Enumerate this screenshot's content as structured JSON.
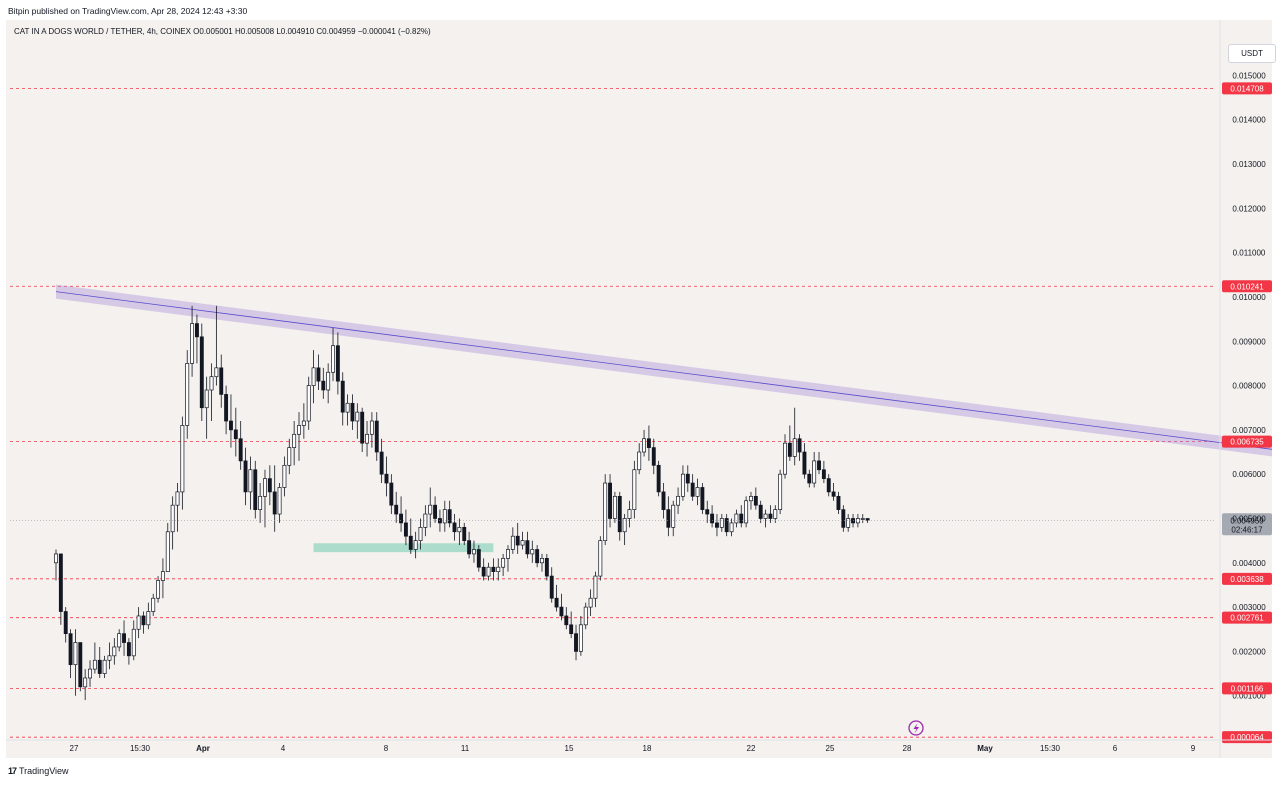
{
  "header": {
    "published_text": "Bitpin published on TradingView.com, Apr 28, 2024 12:43 +3:30"
  },
  "legend": {
    "text": "CAT IN A DOGS WORLD / TETHER, 4h, COINEX  O0.005001  H0.005008  L0.004910  C0.004959  −0.000041 (−0.82%)"
  },
  "currency_button": {
    "label": "USDT"
  },
  "footer": {
    "brand": "TradingView",
    "logo_glyph": "17"
  },
  "chart_data": {
    "type": "candlestick",
    "symbol": "CAT IN A DOGS WORLD / TETHER",
    "interval": "4h",
    "exchange": "COINEX",
    "ohlc": {
      "open": "0.005001",
      "high": "0.005008",
      "low": "0.004910",
      "close": "0.004959",
      "change": "−0.000041",
      "change_pct": "−0.82%"
    },
    "ylim": [
      0,
      0.0158
    ],
    "y_ticks": [
      "0.015000",
      "0.014000",
      "0.013000",
      "0.012000",
      "0.011000",
      "0.010000",
      "0.009000",
      "0.008000",
      "0.007000",
      "0.006000",
      "0.005000",
      "0.004000",
      "0.003000",
      "0.002000",
      "0.001000"
    ],
    "x_ticks": [
      "27",
      "15:30",
      "Apr",
      "4",
      "8",
      "11",
      "15",
      "18",
      "22",
      "25",
      "28",
      "May",
      "15:30",
      "6",
      "9"
    ],
    "price_levels": [
      {
        "value": 0.014708,
        "label": "0.014708",
        "color": "#f23645"
      },
      {
        "value": 0.010241,
        "label": "0.010241",
        "color": "#f23645"
      },
      {
        "value": 0.006735,
        "label": "0.006735",
        "color": "#f23645"
      },
      {
        "value": 0.003638,
        "label": "0.003638",
        "color": "#f23645"
      },
      {
        "value": 0.002761,
        "label": "0.002761",
        "color": "#f23645"
      },
      {
        "value": 0.001166,
        "label": "0.001166",
        "color": "#f23645"
      },
      {
        "value": 6.4e-05,
        "label": "0.000064",
        "color": "#f23645"
      }
    ],
    "current_price": {
      "value": 0.004959,
      "label": "0.004959",
      "countdown": "02:46:17"
    },
    "trendline": {
      "start": {
        "bar": 0,
        "value": 0.01012
      },
      "end": {
        "bar": 258,
        "value": 0.00645
      },
      "color": "#9c7fd6"
    },
    "support_zone": {
      "start_bar": 53,
      "end_bar": 90,
      "value_low": 0.00424,
      "value_high": 0.00444,
      "color": "#9fd8c4"
    },
    "candles": [
      [
        0.004,
        0.0043,
        0.0036,
        0.0042
      ],
      [
        0.0042,
        0.0042,
        0.0026,
        0.0029
      ],
      [
        0.0029,
        0.003,
        0.0022,
        0.0024
      ],
      [
        0.0024,
        0.0025,
        0.0014,
        0.0017
      ],
      [
        0.0017,
        0.0025,
        0.001,
        0.0022
      ],
      [
        0.0022,
        0.0022,
        0.0011,
        0.0012
      ],
      [
        0.0012,
        0.0016,
        0.0009,
        0.0014
      ],
      [
        0.0014,
        0.0018,
        0.0012,
        0.0016
      ],
      [
        0.0016,
        0.0022,
        0.0015,
        0.0018
      ],
      [
        0.0018,
        0.0021,
        0.0014,
        0.0015
      ],
      [
        0.0015,
        0.0019,
        0.0014,
        0.0018
      ],
      [
        0.0018,
        0.0022,
        0.0016,
        0.0019
      ],
      [
        0.0019,
        0.0023,
        0.0017,
        0.0021
      ],
      [
        0.0021,
        0.0025,
        0.002,
        0.0024
      ],
      [
        0.0024,
        0.0027,
        0.0019,
        0.0022
      ],
      [
        0.0022,
        0.0023,
        0.0017,
        0.0019
      ],
      [
        0.0019,
        0.0027,
        0.0018,
        0.0025
      ],
      [
        0.0025,
        0.003,
        0.0023,
        0.0028
      ],
      [
        0.0028,
        0.0029,
        0.0024,
        0.0026
      ],
      [
        0.0026,
        0.0031,
        0.0025,
        0.0029
      ],
      [
        0.0029,
        0.0033,
        0.0028,
        0.0032
      ],
      [
        0.0032,
        0.0037,
        0.0031,
        0.0036
      ],
      [
        0.0036,
        0.0041,
        0.0032,
        0.0038
      ],
      [
        0.0038,
        0.0049,
        0.0038,
        0.0047
      ],
      [
        0.0047,
        0.0055,
        0.0043,
        0.0053
      ],
      [
        0.0053,
        0.0058,
        0.0047,
        0.0056
      ],
      [
        0.0056,
        0.0073,
        0.0052,
        0.0071
      ],
      [
        0.0071,
        0.0088,
        0.0068,
        0.0085
      ],
      [
        0.0085,
        0.0098,
        0.0082,
        0.0094
      ],
      [
        0.0094,
        0.0096,
        0.0085,
        0.0091
      ],
      [
        0.0091,
        0.0094,
        0.0072,
        0.0075
      ],
      [
        0.0075,
        0.0082,
        0.0068,
        0.0079
      ],
      [
        0.0079,
        0.0085,
        0.0072,
        0.0082
      ],
      [
        0.0082,
        0.0098,
        0.008,
        0.0084
      ],
      [
        0.0084,
        0.0087,
        0.0075,
        0.0078
      ],
      [
        0.0078,
        0.008,
        0.0069,
        0.0072
      ],
      [
        0.0072,
        0.0078,
        0.0066,
        0.007
      ],
      [
        0.007,
        0.0075,
        0.0064,
        0.0068
      ],
      [
        0.0068,
        0.0072,
        0.0061,
        0.0063
      ],
      [
        0.0063,
        0.0066,
        0.0053,
        0.0056
      ],
      [
        0.0056,
        0.0064,
        0.0052,
        0.0061
      ],
      [
        0.0061,
        0.0063,
        0.005,
        0.0052
      ],
      [
        0.0052,
        0.0058,
        0.0049,
        0.0055
      ],
      [
        0.0055,
        0.0061,
        0.0048,
        0.0059
      ],
      [
        0.0059,
        0.0062,
        0.0053,
        0.0056
      ],
      [
        0.0056,
        0.0062,
        0.0047,
        0.0051
      ],
      [
        0.0051,
        0.0058,
        0.0049,
        0.0057
      ],
      [
        0.0057,
        0.0064,
        0.0055,
        0.0062
      ],
      [
        0.0062,
        0.0068,
        0.006,
        0.0066
      ],
      [
        0.0066,
        0.0072,
        0.0062,
        0.0069
      ],
      [
        0.0069,
        0.0074,
        0.0063,
        0.0071
      ],
      [
        0.0071,
        0.0076,
        0.0068,
        0.0072
      ],
      [
        0.0072,
        0.0082,
        0.007,
        0.008
      ],
      [
        0.008,
        0.0088,
        0.0076,
        0.0084
      ],
      [
        0.0084,
        0.0087,
        0.0079,
        0.0081
      ],
      [
        0.0081,
        0.0084,
        0.0077,
        0.0079
      ],
      [
        0.0079,
        0.0085,
        0.0076,
        0.0083
      ],
      [
        0.0083,
        0.0093,
        0.0081,
        0.0089
      ],
      [
        0.0089,
        0.0092,
        0.0078,
        0.0081
      ],
      [
        0.0081,
        0.0083,
        0.0071,
        0.0074
      ],
      [
        0.0074,
        0.0078,
        0.0071,
        0.0076
      ],
      [
        0.0076,
        0.0078,
        0.007,
        0.0072
      ],
      [
        0.0072,
        0.0076,
        0.0068,
        0.0074
      ],
      [
        0.0074,
        0.0075,
        0.0065,
        0.0067
      ],
      [
        0.0067,
        0.0072,
        0.0064,
        0.0069
      ],
      [
        0.0069,
        0.0074,
        0.0066,
        0.0072
      ],
      [
        0.0072,
        0.0074,
        0.0063,
        0.0065
      ],
      [
        0.0065,
        0.0068,
        0.0058,
        0.006
      ],
      [
        0.006,
        0.0064,
        0.0055,
        0.0058
      ],
      [
        0.0058,
        0.006,
        0.0051,
        0.0053
      ],
      [
        0.0053,
        0.0056,
        0.0049,
        0.0051
      ],
      [
        0.0051,
        0.0055,
        0.0047,
        0.0049
      ],
      [
        0.0049,
        0.0052,
        0.0044,
        0.0046
      ],
      [
        0.0046,
        0.005,
        0.0042,
        0.0043
      ],
      [
        0.0043,
        0.0047,
        0.0041,
        0.0045
      ],
      [
        0.0045,
        0.005,
        0.0043,
        0.0048
      ],
      [
        0.0048,
        0.0053,
        0.0046,
        0.0051
      ],
      [
        0.0051,
        0.0057,
        0.0048,
        0.0053
      ],
      [
        0.0053,
        0.0055,
        0.0049,
        0.005
      ],
      [
        0.005,
        0.0052,
        0.0047,
        0.0049
      ],
      [
        0.0049,
        0.0054,
        0.0047,
        0.0052
      ],
      [
        0.0052,
        0.0054,
        0.0048,
        0.0049
      ],
      [
        0.0049,
        0.0051,
        0.0045,
        0.0047
      ],
      [
        0.0047,
        0.005,
        0.0044,
        0.0048
      ],
      [
        0.0048,
        0.0049,
        0.0044,
        0.0045
      ],
      [
        0.0045,
        0.0047,
        0.0041,
        0.0042
      ],
      [
        0.0042,
        0.0045,
        0.004,
        0.0043
      ],
      [
        0.0043,
        0.0044,
        0.0038,
        0.0039
      ],
      [
        0.0039,
        0.0041,
        0.0036,
        0.0037
      ],
      [
        0.0037,
        0.004,
        0.0036,
        0.0039
      ],
      [
        0.0039,
        0.0041,
        0.0036,
        0.0038
      ],
      [
        0.0038,
        0.0041,
        0.0036,
        0.0039
      ],
      [
        0.0039,
        0.0042,
        0.0037,
        0.0041
      ],
      [
        0.0041,
        0.0044,
        0.0038,
        0.0043
      ],
      [
        0.0043,
        0.0048,
        0.0042,
        0.0046
      ],
      [
        0.0046,
        0.0049,
        0.0042,
        0.0044
      ],
      [
        0.0044,
        0.0047,
        0.0043,
        0.0045
      ],
      [
        0.0045,
        0.0047,
        0.0041,
        0.0042
      ],
      [
        0.0042,
        0.0045,
        0.004,
        0.0043
      ],
      [
        0.0043,
        0.0044,
        0.0039,
        0.004
      ],
      [
        0.004,
        0.0042,
        0.0038,
        0.0041
      ],
      [
        0.0041,
        0.0042,
        0.0036,
        0.0037
      ],
      [
        0.0037,
        0.0039,
        0.0031,
        0.0032
      ],
      [
        0.0032,
        0.0035,
        0.0029,
        0.003
      ],
      [
        0.003,
        0.0033,
        0.0027,
        0.0028
      ],
      [
        0.0028,
        0.003,
        0.0025,
        0.0026
      ],
      [
        0.0026,
        0.0029,
        0.0023,
        0.0024
      ],
      [
        0.0024,
        0.0026,
        0.0018,
        0.002
      ],
      [
        0.002,
        0.0028,
        0.0019,
        0.0026
      ],
      [
        0.0026,
        0.0031,
        0.0025,
        0.003
      ],
      [
        0.003,
        0.0034,
        0.0028,
        0.0032
      ],
      [
        0.0032,
        0.0038,
        0.003,
        0.0037
      ],
      [
        0.0037,
        0.0046,
        0.0036,
        0.0045
      ],
      [
        0.0045,
        0.006,
        0.0044,
        0.0058
      ],
      [
        0.0058,
        0.006,
        0.0048,
        0.005
      ],
      [
        0.005,
        0.0056,
        0.0049,
        0.0055
      ],
      [
        0.0055,
        0.0056,
        0.0045,
        0.0047
      ],
      [
        0.0047,
        0.0051,
        0.0044,
        0.005
      ],
      [
        0.005,
        0.0054,
        0.0048,
        0.0052
      ],
      [
        0.0052,
        0.0063,
        0.005,
        0.0061
      ],
      [
        0.0061,
        0.0067,
        0.006,
        0.0065
      ],
      [
        0.0065,
        0.007,
        0.0064,
        0.0068
      ],
      [
        0.0068,
        0.0071,
        0.0063,
        0.0066
      ],
      [
        0.0066,
        0.0068,
        0.006,
        0.0062
      ],
      [
        0.0062,
        0.0063,
        0.0055,
        0.0056
      ],
      [
        0.0056,
        0.0058,
        0.005,
        0.0052
      ],
      [
        0.0052,
        0.0055,
        0.0046,
        0.0048
      ],
      [
        0.0048,
        0.0054,
        0.0046,
        0.0053
      ],
      [
        0.0053,
        0.0057,
        0.0051,
        0.0055
      ],
      [
        0.0055,
        0.0062,
        0.0054,
        0.006
      ],
      [
        0.006,
        0.0062,
        0.0056,
        0.0058
      ],
      [
        0.0058,
        0.006,
        0.0054,
        0.0055
      ],
      [
        0.0055,
        0.0059,
        0.0053,
        0.0057
      ],
      [
        0.0057,
        0.0058,
        0.0051,
        0.0052
      ],
      [
        0.0052,
        0.0054,
        0.0049,
        0.0051
      ],
      [
        0.0051,
        0.0053,
        0.0048,
        0.0049
      ],
      [
        0.0049,
        0.0051,
        0.0046,
        0.0048
      ],
      [
        0.0048,
        0.0051,
        0.0047,
        0.005
      ],
      [
        0.005,
        0.0051,
        0.0046,
        0.0047
      ],
      [
        0.0047,
        0.005,
        0.0046,
        0.0049
      ],
      [
        0.0049,
        0.0052,
        0.0048,
        0.0051
      ],
      [
        0.0051,
        0.0053,
        0.0048,
        0.0049
      ],
      [
        0.0049,
        0.0055,
        0.0048,
        0.0054
      ],
      [
        0.0054,
        0.0056,
        0.0052,
        0.0055
      ],
      [
        0.0055,
        0.0057,
        0.0052,
        0.0053
      ],
      [
        0.0053,
        0.0054,
        0.0049,
        0.005
      ],
      [
        0.005,
        0.0052,
        0.0048,
        0.0051
      ],
      [
        0.0051,
        0.0053,
        0.0049,
        0.005
      ],
      [
        0.005,
        0.0053,
        0.0049,
        0.0052
      ],
      [
        0.0052,
        0.0061,
        0.0051,
        0.006
      ],
      [
        0.006,
        0.0069,
        0.0059,
        0.0067
      ],
      [
        0.0067,
        0.0071,
        0.0063,
        0.0064
      ],
      [
        0.0064,
        0.0075,
        0.0062,
        0.0068
      ],
      [
        0.0068,
        0.0069,
        0.0063,
        0.0065
      ],
      [
        0.0065,
        0.0067,
        0.0059,
        0.006
      ],
      [
        0.006,
        0.0061,
        0.0057,
        0.0058
      ],
      [
        0.0058,
        0.0065,
        0.0057,
        0.0063
      ],
      [
        0.0063,
        0.0065,
        0.006,
        0.0061
      ],
      [
        0.0061,
        0.0063,
        0.0058,
        0.0059
      ],
      [
        0.0059,
        0.006,
        0.0055,
        0.0056
      ],
      [
        0.0056,
        0.0058,
        0.0054,
        0.0055
      ],
      [
        0.0055,
        0.0056,
        0.0051,
        0.0052
      ],
      [
        0.0052,
        0.0053,
        0.0047,
        0.0048
      ],
      [
        0.0048,
        0.0051,
        0.0047,
        0.005
      ],
      [
        0.005,
        0.0051,
        0.0048,
        0.0049
      ],
      [
        0.0049,
        0.0051,
        0.0048,
        0.005
      ],
      [
        0.005,
        0.0051,
        0.0049,
        0.005
      ],
      [
        0.005,
        0.005,
        0.0049,
        0.00496
      ]
    ]
  }
}
